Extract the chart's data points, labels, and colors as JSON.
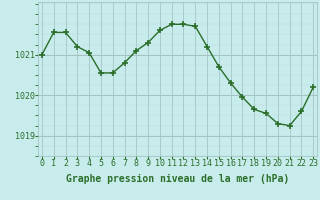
{
  "hours": [
    0,
    1,
    2,
    3,
    4,
    5,
    6,
    7,
    8,
    9,
    10,
    11,
    12,
    13,
    14,
    15,
    16,
    17,
    18,
    19,
    20,
    21,
    22,
    23
  ],
  "pressure": [
    1021.0,
    1021.55,
    1021.55,
    1021.2,
    1021.05,
    1020.55,
    1020.55,
    1020.8,
    1021.1,
    1021.3,
    1021.6,
    1021.75,
    1021.75,
    1021.7,
    1021.2,
    1020.7,
    1020.3,
    1019.95,
    1019.65,
    1019.55,
    1019.3,
    1019.25,
    1019.6,
    1020.2
  ],
  "line_color": "#2a6e2a",
  "marker": "+",
  "markersize": 4,
  "markeredgewidth": 1.2,
  "linewidth": 1,
  "bg_color": "#c8ecec",
  "grid_color_v": "#9dbdbd",
  "grid_color_h": "#c0d8d8",
  "xlabel": "Graphe pression niveau de la mer (hPa)",
  "xlabel_fontsize": 7,
  "tick_color": "#2a6e2a",
  "tick_fontsize": 6,
  "ylim": [
    1018.5,
    1022.3
  ],
  "yticks": [
    1019,
    1020,
    1021
  ],
  "ytick_fontsize": 6
}
